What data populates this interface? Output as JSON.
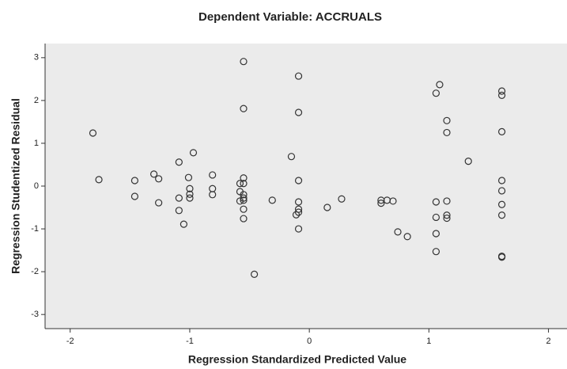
{
  "chart_data": {
    "type": "scatter",
    "title": "Dependent Variable: ACCRUALS",
    "x_label": "Regression Standardized Predicted Value",
    "y_label": "Regression Studentized Residual",
    "x": [
      -1.81,
      -1.76,
      -1.46,
      -1.46,
      -1.3,
      -1.26,
      -1.26,
      -1.09,
      -1.09,
      -1.09,
      -1.05,
      -1.01,
      -1.0,
      -1.0,
      -1.0,
      -0.97,
      -0.81,
      -0.81,
      -0.81,
      -0.58,
      -0.58,
      -0.55,
      -0.55,
      -0.55,
      -0.55,
      -0.55,
      -0.55,
      -0.55,
      -0.58,
      -0.55,
      -0.55,
      -0.46,
      -0.31,
      -0.15,
      -0.11,
      -0.09,
      -0.09,
      -0.09,
      -0.09,
      -0.09,
      -0.09,
      -0.09,
      0.15,
      0.27,
      0.6,
      0.6,
      0.65,
      0.7,
      0.74,
      0.82,
      1.06,
      1.09,
      1.06,
      1.06,
      1.06,
      1.06,
      1.15,
      1.15,
      1.15,
      1.15,
      1.15,
      1.33,
      1.61,
      1.61,
      1.61,
      1.61,
      1.61,
      1.61,
      1.61,
      1.61,
      1.61
    ],
    "values": [
      1.24,
      0.15,
      0.13,
      -0.24,
      0.28,
      0.17,
      -0.39,
      0.56,
      -0.28,
      -0.57,
      -0.89,
      0.2,
      -0.06,
      -0.19,
      -0.28,
      0.78,
      0.26,
      -0.06,
      -0.2,
      0.06,
      -0.13,
      2.91,
      1.81,
      0.19,
      0.06,
      -0.2,
      -0.28,
      -0.33,
      -0.35,
      -0.54,
      -0.76,
      -2.06,
      -0.33,
      0.69,
      -0.67,
      -0.61,
      2.57,
      1.72,
      0.13,
      -0.37,
      -0.54,
      -1.0,
      -0.5,
      -0.3,
      -0.33,
      -0.4,
      -0.33,
      -0.35,
      -1.07,
      -1.18,
      2.17,
      2.37,
      -0.37,
      -0.73,
      -1.11,
      -1.53,
      1.53,
      1.25,
      -0.35,
      -0.68,
      -0.75,
      0.58,
      2.22,
      2.12,
      1.27,
      0.13,
      -0.11,
      -0.43,
      -0.68,
      -1.64,
      -1.66
    ],
    "xlim": [
      -2.21,
      2.155
    ],
    "xticks": [
      -2,
      -1,
      0,
      1,
      2
    ],
    "ylim": [
      -3.33,
      3.33
    ],
    "yticks": [
      -3,
      -2,
      -1,
      0,
      1,
      2,
      3
    ],
    "color": "#333333",
    "background": "#ebebeb"
  }
}
